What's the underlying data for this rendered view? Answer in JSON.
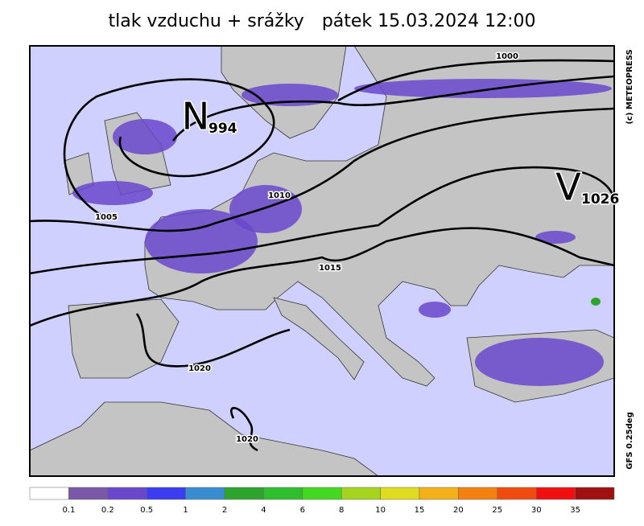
{
  "header": {
    "title": "tlak vzduchu + srážky",
    "date": "pátek 15.03.2024 12:00"
  },
  "side": {
    "copyright": "(c) METEOPRESS",
    "model": "GFS 0.25deg"
  },
  "centers": [
    {
      "letter": "N",
      "value": "994"
    },
    {
      "letter": "V",
      "value": "1026"
    }
  ],
  "isobars": [
    "1000",
    "1005",
    "1010",
    "1015",
    "1020",
    "1020"
  ],
  "legend": {
    "colors": [
      "#ffffff",
      "#7a5aa8",
      "#6a48cc",
      "#3c3cf0",
      "#3a8cd0",
      "#2ea42e",
      "#2ebe2e",
      "#44d820",
      "#a4d420",
      "#e0dc20",
      "#f4b018",
      "#f48010",
      "#f04c10",
      "#f01010",
      "#a01010"
    ],
    "labels": [
      "0.1",
      "0.2",
      "0.5",
      "1",
      "2",
      "4",
      "6",
      "8",
      "10",
      "15",
      "20",
      "25",
      "30",
      "35"
    ]
  }
}
